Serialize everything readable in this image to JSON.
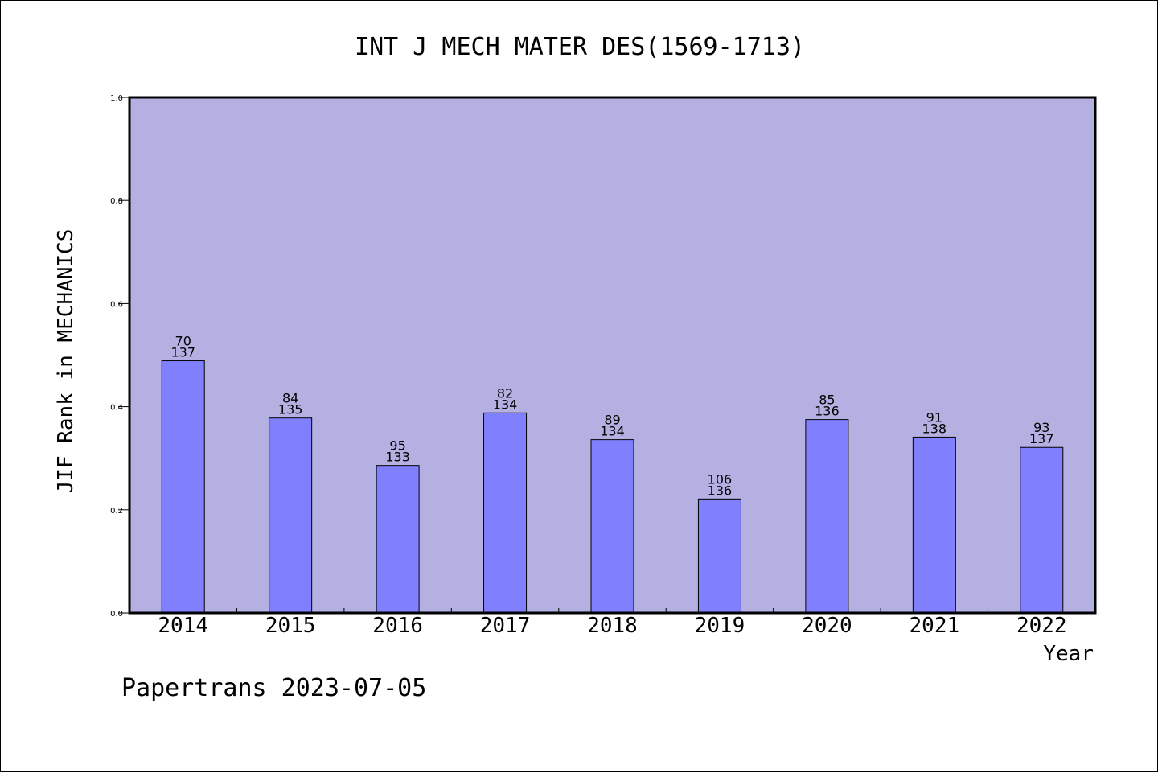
{
  "chart_data": {
    "type": "bar",
    "title": "INT J MECH MATER DES(1569-1713)",
    "xlabel": "Year",
    "ylabel": "JIF Rank in MECHANICS",
    "ylim": [
      0,
      1.0
    ],
    "y_ticks": [
      "0.0",
      "0.2",
      "0.4",
      "0.6",
      "0.8",
      "1.0"
    ],
    "y_tick_values": [
      0.0,
      0.2,
      0.4,
      0.6,
      0.8,
      1.0
    ],
    "categories": [
      "2014",
      "2015",
      "2016",
      "2017",
      "2018",
      "2019",
      "2020",
      "2021",
      "2022"
    ],
    "values": [
      0.489,
      0.378,
      0.286,
      0.388,
      0.336,
      0.221,
      0.375,
      0.341,
      0.321
    ],
    "rank_labels": [
      "70",
      "84",
      "95",
      "82",
      "89",
      "106",
      "85",
      "91",
      "93"
    ],
    "total_labels": [
      "137",
      "135",
      "133",
      "134",
      "134",
      "136",
      "136",
      "138",
      "137"
    ],
    "grid": false,
    "legend": "none",
    "colors": {
      "plot_background": "#b5b0e2",
      "bar_fill": "#8080ff",
      "bar_stroke": "#000000",
      "axis": "#000000"
    }
  },
  "footer": {
    "note": "Papertrans 2023-07-05"
  }
}
